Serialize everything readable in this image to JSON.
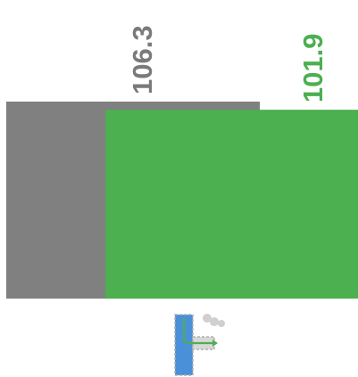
{
  "chart_data": {
    "type": "bar",
    "title": "",
    "xlabel": "",
    "ylabel": "",
    "ylim": [
      0,
      106.3
    ],
    "grid": false,
    "legend": "none",
    "series": [
      {
        "value": 106.3,
        "label": "106.3",
        "color": "#808080"
      },
      {
        "value": 101.9,
        "label": "101.9",
        "color": "#4caf50"
      }
    ]
  },
  "icon": {
    "name": "pipe-junction-icon"
  }
}
